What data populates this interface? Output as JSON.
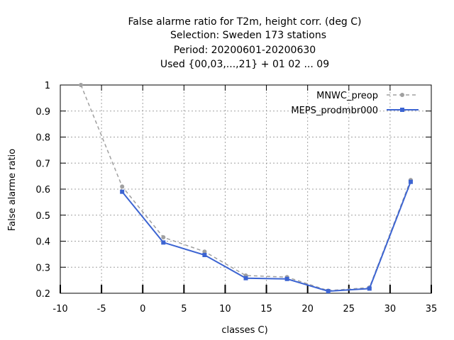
{
  "chart_data": {
    "type": "line",
    "title": [
      "False alarme ratio  for T2m, height corr. (deg C)",
      "Selection: Sweden    173 stations",
      "Period: 20200601-20200630",
      "Used {00,03,...,21} + 01 02 ... 09"
    ],
    "xlabel": "classes C)",
    "ylabel": "False alarme ratio",
    "xlim": [
      -10,
      35
    ],
    "ylim": [
      0.2,
      1.0
    ],
    "xticks": [
      "-10",
      "-5",
      "0",
      "5",
      "10",
      "15",
      "20",
      "25",
      "30",
      "35"
    ],
    "yticks": [
      "0.2",
      "0.3",
      "0.4",
      "0.5",
      "0.6",
      "0.7",
      "0.8",
      "0.9",
      "1"
    ],
    "grid": true,
    "legend_position": "top-right",
    "series": [
      {
        "name": "MNWC_preop",
        "color": "#a0a0a0",
        "style": "dashed",
        "marker": "circle",
        "x": [
          -7.5,
          -2.5,
          2.5,
          7.5,
          12.5,
          17.5,
          22.5,
          27.5,
          32.5
        ],
        "y": [
          1.0,
          0.61,
          0.415,
          0.36,
          0.268,
          0.262,
          0.21,
          0.222,
          0.635
        ]
      },
      {
        "name": "MEPS_prodmbr000",
        "color": "#3c64d2",
        "style": "solid",
        "marker": "square",
        "x": [
          -2.5,
          2.5,
          7.5,
          12.5,
          17.5,
          22.5,
          27.5,
          32.5
        ],
        "y": [
          0.59,
          0.395,
          0.347,
          0.258,
          0.255,
          0.208,
          0.218,
          0.628
        ]
      }
    ]
  }
}
